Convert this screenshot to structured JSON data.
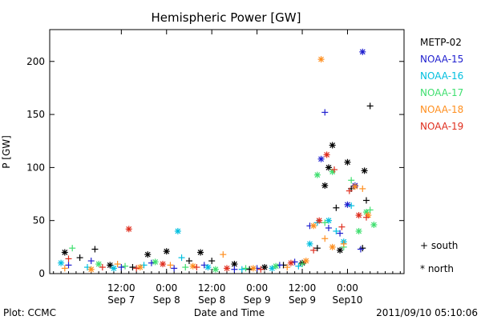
{
  "chart_data": {
    "type": "scatter",
    "title": "Hemispheric Power [GW]",
    "xlabel": "Date and Time",
    "ylabel": "P [GW]",
    "xlim": [
      -7,
      87
    ],
    "ylim": [
      0,
      230
    ],
    "y_ticks": [
      0,
      50,
      100,
      150,
      200
    ],
    "x_tick_hours": [
      12,
      24,
      36,
      48,
      60,
      72
    ],
    "x_tick_labels": [
      [
        "12:00",
        "Sep 7"
      ],
      [
        "0:00",
        "Sep 8"
      ],
      [
        "12:00",
        "Sep 8"
      ],
      [
        "0:00",
        "Sep 9"
      ],
      [
        "12:00",
        "Sep 9"
      ],
      [
        "0:00",
        "Sep10"
      ]
    ],
    "grid": false,
    "legend_position": "right",
    "series": [
      {
        "name": "METP-02",
        "color": "#000000",
        "points": [
          {
            "x": -3,
            "y": 20,
            "m": "star"
          },
          {
            "x": 1,
            "y": 15,
            "m": "plus"
          },
          {
            "x": 5,
            "y": 23,
            "m": "plus"
          },
          {
            "x": 9,
            "y": 8,
            "m": "star"
          },
          {
            "x": 15,
            "y": 6,
            "m": "plus"
          },
          {
            "x": 19,
            "y": 18,
            "m": "star"
          },
          {
            "x": 24,
            "y": 21,
            "m": "star"
          },
          {
            "x": 30,
            "y": 12,
            "m": "plus"
          },
          {
            "x": 33,
            "y": 20,
            "m": "star"
          },
          {
            "x": 36,
            "y": 12,
            "m": "plus"
          },
          {
            "x": 42,
            "y": 9,
            "m": "star"
          },
          {
            "x": 46,
            "y": 4,
            "m": "plus"
          },
          {
            "x": 50,
            "y": 6,
            "m": "star"
          },
          {
            "x": 55,
            "y": 8,
            "m": "plus"
          },
          {
            "x": 60,
            "y": 10,
            "m": "star"
          },
          {
            "x": 64,
            "y": 24,
            "m": "plus"
          },
          {
            "x": 66,
            "y": 83,
            "m": "star"
          },
          {
            "x": 67,
            "y": 100,
            "m": "star"
          },
          {
            "x": 68,
            "y": 121,
            "m": "star"
          },
          {
            "x": 69,
            "y": 62,
            "m": "plus"
          },
          {
            "x": 70,
            "y": 22,
            "m": "star"
          },
          {
            "x": 72,
            "y": 105,
            "m": "star"
          },
          {
            "x": 73,
            "y": 80,
            "m": "plus"
          },
          {
            "x": 76,
            "y": 24,
            "m": "plus"
          },
          {
            "x": 76.5,
            "y": 97,
            "m": "star"
          },
          {
            "x": 77,
            "y": 69,
            "m": "plus"
          },
          {
            "x": 78,
            "y": 158,
            "m": "plus"
          }
        ]
      },
      {
        "name": "NOAA-15",
        "color": "#1f1fcf",
        "points": [
          {
            "x": -2,
            "y": 8,
            "m": "plus"
          },
          {
            "x": 4,
            "y": 12,
            "m": "plus"
          },
          {
            "x": 12,
            "y": 6,
            "m": "plus"
          },
          {
            "x": 20,
            "y": 10,
            "m": "plus"
          },
          {
            "x": 26,
            "y": 5,
            "m": "plus"
          },
          {
            "x": 34,
            "y": 8,
            "m": "plus"
          },
          {
            "x": 42,
            "y": 4,
            "m": "plus"
          },
          {
            "x": 48,
            "y": 5,
            "m": "plus"
          },
          {
            "x": 54,
            "y": 8,
            "m": "plus"
          },
          {
            "x": 58,
            "y": 11,
            "m": "plus"
          },
          {
            "x": 62,
            "y": 45,
            "m": "plus"
          },
          {
            "x": 65,
            "y": 108,
            "m": "star"
          },
          {
            "x": 66,
            "y": 152,
            "m": "plus"
          },
          {
            "x": 67,
            "y": 43,
            "m": "plus"
          },
          {
            "x": 70,
            "y": 38,
            "m": "plus"
          },
          {
            "x": 72,
            "y": 65,
            "m": "star"
          },
          {
            "x": 74,
            "y": 83,
            "m": "star"
          },
          {
            "x": 75.5,
            "y": 23,
            "m": "plus"
          },
          {
            "x": 76,
            "y": 209,
            "m": "star"
          }
        ]
      },
      {
        "name": "NOAA-16",
        "color": "#00bfdf",
        "points": [
          {
            "x": -4,
            "y": 10,
            "m": "star"
          },
          {
            "x": 3,
            "y": 6,
            "m": "plus"
          },
          {
            "x": 10,
            "y": 5,
            "m": "star"
          },
          {
            "x": 18,
            "y": 8,
            "m": "plus"
          },
          {
            "x": 27,
            "y": 40,
            "m": "star"
          },
          {
            "x": 28,
            "y": 15,
            "m": "plus"
          },
          {
            "x": 35,
            "y": 6,
            "m": "star"
          },
          {
            "x": 44,
            "y": 4,
            "m": "plus"
          },
          {
            "x": 52,
            "y": 5,
            "m": "star"
          },
          {
            "x": 59,
            "y": 7,
            "m": "plus"
          },
          {
            "x": 62,
            "y": 28,
            "m": "star"
          },
          {
            "x": 64,
            "y": 48,
            "m": "plus"
          },
          {
            "x": 67,
            "y": 50,
            "m": "star"
          },
          {
            "x": 69,
            "y": 40,
            "m": "plus"
          },
          {
            "x": 71,
            "y": 30,
            "m": "star"
          },
          {
            "x": 73,
            "y": 64,
            "m": "plus"
          }
        ]
      },
      {
        "name": "NOAA-17",
        "color": "#3fdf6f",
        "points": [
          {
            "x": -1,
            "y": 24,
            "m": "plus"
          },
          {
            "x": 6,
            "y": 9,
            "m": "star"
          },
          {
            "x": 13,
            "y": 7,
            "m": "plus"
          },
          {
            "x": 21,
            "y": 11,
            "m": "star"
          },
          {
            "x": 29,
            "y": 6,
            "m": "plus"
          },
          {
            "x": 37,
            "y": 4,
            "m": "star"
          },
          {
            "x": 45,
            "y": 5,
            "m": "plus"
          },
          {
            "x": 53,
            "y": 7,
            "m": "star"
          },
          {
            "x": 60,
            "y": 9,
            "m": "plus"
          },
          {
            "x": 64,
            "y": 93,
            "m": "star"
          },
          {
            "x": 66,
            "y": 48,
            "m": "plus"
          },
          {
            "x": 68,
            "y": 96,
            "m": "star"
          },
          {
            "x": 71,
            "y": 25,
            "m": "plus"
          },
          {
            "x": 73,
            "y": 88,
            "m": "plus"
          },
          {
            "x": 75,
            "y": 40,
            "m": "star"
          },
          {
            "x": 77,
            "y": 58,
            "m": "star"
          },
          {
            "x": 78,
            "y": 60,
            "m": "plus"
          },
          {
            "x": 79,
            "y": 46,
            "m": "star"
          }
        ]
      },
      {
        "name": "NOAA-18",
        "color": "#ff8f1f",
        "points": [
          {
            "x": -3,
            "y": 5,
            "m": "plus"
          },
          {
            "x": 4,
            "y": 4,
            "m": "star"
          },
          {
            "x": 11,
            "y": 9,
            "m": "plus"
          },
          {
            "x": 17,
            "y": 6,
            "m": "star"
          },
          {
            "x": 25,
            "y": 8,
            "m": "plus"
          },
          {
            "x": 31,
            "y": 7,
            "m": "star"
          },
          {
            "x": 39,
            "y": 18,
            "m": "plus"
          },
          {
            "x": 47,
            "y": 5,
            "m": "star"
          },
          {
            "x": 56,
            "y": 6,
            "m": "plus"
          },
          {
            "x": 61,
            "y": 12,
            "m": "star"
          },
          {
            "x": 63,
            "y": 45,
            "m": "star"
          },
          {
            "x": 65,
            "y": 202,
            "m": "star"
          },
          {
            "x": 66,
            "y": 33,
            "m": "plus"
          },
          {
            "x": 68,
            "y": 25,
            "m": "star"
          },
          {
            "x": 71,
            "y": 28,
            "m": "plus"
          },
          {
            "x": 74,
            "y": 82,
            "m": "star"
          },
          {
            "x": 76,
            "y": 80,
            "m": "plus"
          },
          {
            "x": 77.5,
            "y": 55,
            "m": "star"
          }
        ]
      },
      {
        "name": "NOAA-19",
        "color": "#df2f1f",
        "points": [
          {
            "x": -2,
            "y": 14,
            "m": "plus"
          },
          {
            "x": 7,
            "y": 6,
            "m": "plus"
          },
          {
            "x": 14,
            "y": 42,
            "m": "star"
          },
          {
            "x": 16,
            "y": 5,
            "m": "plus"
          },
          {
            "x": 23,
            "y": 9,
            "m": "star"
          },
          {
            "x": 32,
            "y": 6,
            "m": "plus"
          },
          {
            "x": 40,
            "y": 5,
            "m": "star"
          },
          {
            "x": 49,
            "y": 4,
            "m": "plus"
          },
          {
            "x": 57,
            "y": 10,
            "m": "star"
          },
          {
            "x": 63,
            "y": 22,
            "m": "plus"
          },
          {
            "x": 64.5,
            "y": 50,
            "m": "star"
          },
          {
            "x": 66.5,
            "y": 112,
            "m": "star"
          },
          {
            "x": 68.5,
            "y": 98,
            "m": "plus"
          },
          {
            "x": 70.5,
            "y": 44,
            "m": "plus"
          },
          {
            "x": 72.5,
            "y": 78,
            "m": "plus"
          },
          {
            "x": 75,
            "y": 55,
            "m": "star"
          },
          {
            "x": 77,
            "y": 53,
            "m": "plus"
          }
        ]
      }
    ],
    "marker_legend": [
      {
        "symbol": "+",
        "label": "south"
      },
      {
        "symbol": "*",
        "label": "north"
      }
    ]
  },
  "footer": {
    "left": "Plot: CCMC",
    "right": "2011/09/10 05:10:06"
  }
}
